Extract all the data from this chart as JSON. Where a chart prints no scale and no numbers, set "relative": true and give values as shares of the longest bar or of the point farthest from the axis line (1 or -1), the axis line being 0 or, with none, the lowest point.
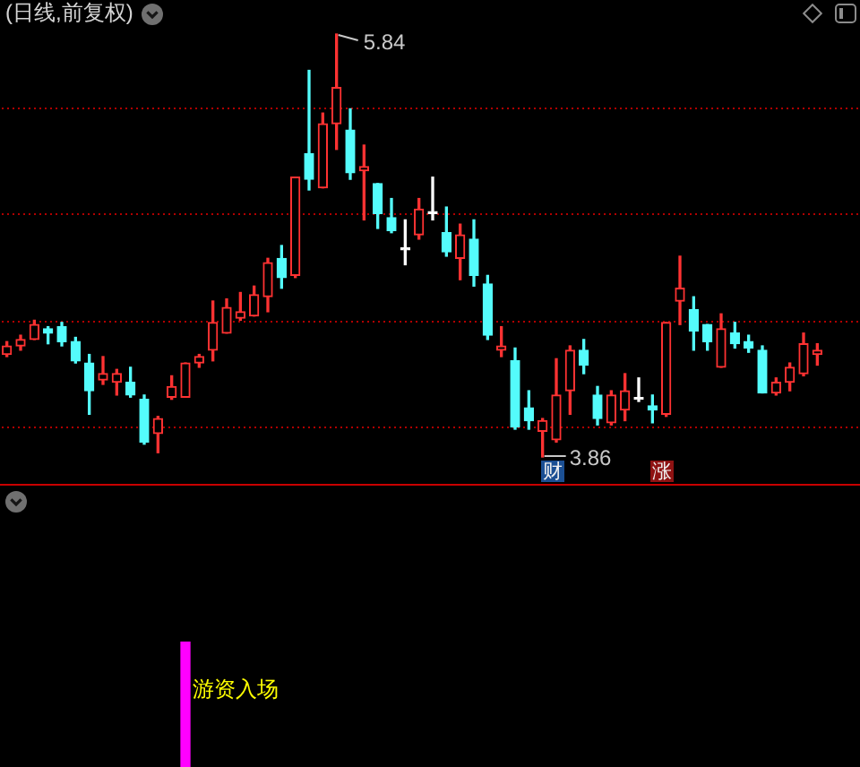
{
  "chart_data": [
    {
      "type": "candlestick",
      "title": "(日线,前复权)",
      "categories": [
        null,
        null,
        null,
        null,
        null,
        null,
        null,
        null,
        null,
        null,
        null,
        null,
        null,
        null,
        null,
        null,
        null,
        null,
        null,
        null,
        null,
        null,
        null,
        null,
        null,
        null,
        null,
        null,
        null,
        null,
        null,
        null,
        null,
        null,
        null,
        null,
        null,
        null,
        null,
        null,
        null,
        null,
        null,
        null,
        null,
        null,
        null,
        null,
        null,
        null,
        null,
        null,
        null,
        null,
        null,
        null,
        null,
        null,
        null,
        null
      ],
      "ohlc": [
        [
          4.34,
          4.4,
          4.33,
          4.38
        ],
        [
          4.38,
          4.43,
          4.36,
          4.41
        ],
        [
          4.41,
          4.5,
          4.41,
          4.48
        ],
        [
          4.46,
          4.47,
          4.39,
          4.44
        ],
        [
          4.47,
          4.49,
          4.38,
          4.4
        ],
        [
          4.4,
          4.42,
          4.3,
          4.31
        ],
        [
          4.3,
          4.34,
          4.06,
          4.17
        ],
        [
          4.22,
          4.33,
          4.2,
          4.25
        ],
        [
          4.21,
          4.27,
          4.15,
          4.25
        ],
        [
          4.21,
          4.28,
          4.14,
          4.15
        ],
        [
          4.13,
          4.15,
          3.92,
          3.93
        ],
        [
          3.97,
          4.05,
          3.88,
          4.04
        ],
        [
          4.14,
          4.24,
          4.13,
          4.19
        ],
        [
          4.14,
          4.3,
          4.14,
          4.3
        ],
        [
          4.3,
          4.34,
          4.28,
          4.33
        ],
        [
          4.36,
          4.59,
          4.31,
          4.49
        ],
        [
          4.44,
          4.6,
          4.44,
          4.56
        ],
        [
          4.51,
          4.63,
          4.5,
          4.54
        ],
        [
          4.52,
          4.66,
          4.52,
          4.62
        ],
        [
          4.61,
          4.79,
          4.54,
          4.77
        ],
        [
          4.79,
          4.85,
          4.65,
          4.7
        ],
        [
          4.71,
          5.17,
          4.7,
          5.17
        ],
        [
          5.28,
          5.67,
          5.11,
          5.16
        ],
        [
          5.12,
          5.47,
          5.12,
          5.42
        ],
        [
          5.42,
          5.84,
          5.3,
          5.59
        ],
        [
          5.39,
          5.49,
          5.16,
          5.19
        ],
        [
          5.2,
          5.32,
          4.97,
          5.22
        ],
        [
          5.14,
          5.14,
          4.93,
          5.0
        ],
        [
          4.98,
          5.07,
          4.91,
          4.92
        ],
        [
          4.83,
          4.97,
          4.76,
          4.83
        ],
        [
          4.9,
          5.07,
          4.88,
          5.02
        ],
        [
          5.0,
          5.17,
          4.97,
          5.0
        ],
        [
          4.91,
          5.03,
          4.8,
          4.82
        ],
        [
          4.79,
          4.95,
          4.69,
          4.9
        ],
        [
          4.88,
          4.97,
          4.66,
          4.71
        ],
        [
          4.67,
          4.71,
          4.41,
          4.43
        ],
        [
          4.36,
          4.47,
          4.33,
          4.38
        ],
        [
          4.31,
          4.37,
          3.99,
          4.0
        ],
        [
          4.09,
          4.17,
          3.99,
          4.03
        ],
        [
          3.98,
          4.04,
          3.86,
          4.03
        ],
        [
          3.94,
          4.32,
          3.93,
          4.15
        ],
        [
          4.17,
          4.38,
          4.06,
          4.36
        ],
        [
          4.36,
          4.41,
          4.25,
          4.29
        ],
        [
          4.15,
          4.19,
          4.01,
          4.04
        ],
        [
          4.02,
          4.17,
          4.01,
          4.15
        ],
        [
          4.08,
          4.25,
          4.03,
          4.17
        ],
        [
          4.13,
          4.23,
          4.12,
          4.13
        ],
        [
          4.1,
          4.15,
          4.02,
          4.08
        ],
        [
          4.06,
          4.49,
          4.05,
          4.49
        ],
        [
          4.59,
          4.8,
          4.48,
          4.65
        ],
        [
          4.55,
          4.61,
          4.36,
          4.45
        ],
        [
          4.48,
          4.48,
          4.36,
          4.4
        ],
        [
          4.28,
          4.53,
          4.28,
          4.46
        ],
        [
          4.44,
          4.49,
          4.37,
          4.39
        ],
        [
          4.4,
          4.43,
          4.35,
          4.37
        ],
        [
          4.36,
          4.38,
          4.16,
          4.16
        ],
        [
          4.16,
          4.23,
          4.15,
          4.21
        ],
        [
          4.21,
          4.3,
          4.17,
          4.28
        ],
        [
          4.25,
          4.44,
          4.24,
          4.39
        ],
        [
          4.34,
          4.39,
          4.29,
          4.36
        ]
      ],
      "colors": [
        "#ff3232",
        "#ff3232",
        "#ff3232",
        "#54fcfc",
        "#54fcfc",
        "#54fcfc",
        "#54fcfc",
        "#ff3232",
        "#ff3232",
        "#54fcfc",
        "#54fcfc",
        "#ff3232",
        "#ff3232",
        "#ff3232",
        "#ff3232",
        "#ff3232",
        "#ff3232",
        "#ff3232",
        "#ff3232",
        "#ff3232",
        "#54fcfc",
        "#ff3232",
        "#54fcfc",
        "#ff3232",
        "#ff3232",
        "#54fcfc",
        "#ff3232",
        "#54fcfc",
        "#54fcfc",
        "#ffffff",
        "#ff3232",
        "#ffffff",
        "#54fcfc",
        "#ff3232",
        "#54fcfc",
        "#54fcfc",
        "#ff3232",
        "#54fcfc",
        "#54fcfc",
        "#ff3232",
        "#ff3232",
        "#ff3232",
        "#54fcfc",
        "#54fcfc",
        "#ff3232",
        "#ff3232",
        "#ffffff",
        "#54fcfc",
        "#ff3232",
        "#ff3232",
        "#54fcfc",
        "#54fcfc",
        "#ff3232",
        "#54fcfc",
        "#54fcfc",
        "#54fcfc",
        "#ff3232",
        "#ff3232",
        "#ff3232",
        "#ff3232"
      ],
      "yticks": [
        {
          "value": 4.0,
          "label": null
        },
        {
          "value": 4.5,
          "label": null
        },
        {
          "value": 5.0,
          "label": null
        },
        {
          "value": 5.5,
          "label": null
        }
      ],
      "grid": "y",
      "tick_labels": false,
      "annotations": [
        "5.84",
        "3.86",
        "财",
        "涨"
      ]
    },
    {
      "type": "bar",
      "relative": true,
      "categories": [
        null,
        null,
        null,
        null,
        null,
        null,
        null,
        null,
        null,
        null,
        null,
        null,
        null,
        null,
        null,
        null,
        null,
        null,
        null,
        null,
        null,
        null,
        null,
        null,
        null,
        null,
        null,
        null,
        null,
        null,
        null,
        null,
        null,
        null,
        null,
        null,
        null,
        null,
        null,
        null,
        null,
        null,
        null,
        null,
        null,
        null,
        null,
        null,
        null,
        null,
        null,
        null,
        null,
        null,
        null,
        null,
        null,
        null,
        null,
        null
      ],
      "values": [
        null,
        null,
        null,
        null,
        null,
        null,
        null,
        null,
        null,
        null,
        null,
        null,
        null,
        1,
        null,
        null,
        null,
        null,
        null,
        null,
        null,
        null,
        null,
        null,
        null,
        null,
        null,
        null,
        null,
        null,
        null,
        null,
        null,
        null,
        null,
        null,
        null,
        null,
        null,
        null,
        null,
        null,
        null,
        null,
        null,
        null,
        null,
        null,
        null,
        null,
        null,
        null,
        null,
        null,
        null,
        null,
        null,
        null,
        null,
        null
      ],
      "color": "#ff00ff",
      "tick_labels": false,
      "annotations": [
        "游资入场"
      ]
    }
  ]
}
